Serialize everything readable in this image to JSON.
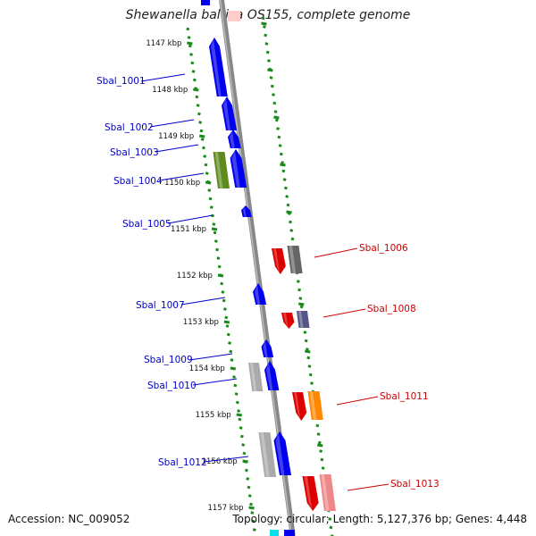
{
  "title": "Shewanella baltica OS155, complete genome",
  "footer": {
    "accession": "Accession: NC_009052",
    "topology": "Topology: circular; Length: 5,127,376 bp; Genes: 4,448"
  },
  "scale_labels": [
    "1147 kbp",
    "1148 kbp",
    "1149 kbp",
    "1150 kbp",
    "1151 kbp",
    "1152 kbp",
    "1153 kbp",
    "1154 kbp",
    "1155 kbp",
    "1156 kbp",
    "1157 kbp"
  ],
  "genes": [
    {
      "label": "Sbal_1001",
      "strand": "forward",
      "color": "#0000ee"
    },
    {
      "label": "Sbal_1002",
      "strand": "forward",
      "color": "#0000ee"
    },
    {
      "label": "Sbal_1003",
      "strand": "forward",
      "color": "#0000ee"
    },
    {
      "label": "Sbal_1004",
      "strand": "forward",
      "color": "#0000ee"
    },
    {
      "label": "Sbal_1005",
      "strand": "forward",
      "color": "#0000ee"
    },
    {
      "label": "Sbal_1006",
      "strand": "reverse",
      "color": "#dd0000"
    },
    {
      "label": "Sbal_1007",
      "strand": "forward",
      "color": "#0000ee"
    },
    {
      "label": "Sbal_1008",
      "strand": "reverse",
      "color": "#dd0000"
    },
    {
      "label": "Sbal_1009",
      "strand": "forward",
      "color": "#0000ee"
    },
    {
      "label": "Sbal_1010",
      "strand": "forward",
      "color": "#0000ee"
    },
    {
      "label": "Sbal_1011",
      "strand": "reverse",
      "color": "#dd0000"
    },
    {
      "label": "Sbal_1012",
      "strand": "forward",
      "color": "#0000ee"
    },
    {
      "label": "Sbal_1013",
      "strand": "reverse",
      "color": "#dd0000"
    }
  ]
}
